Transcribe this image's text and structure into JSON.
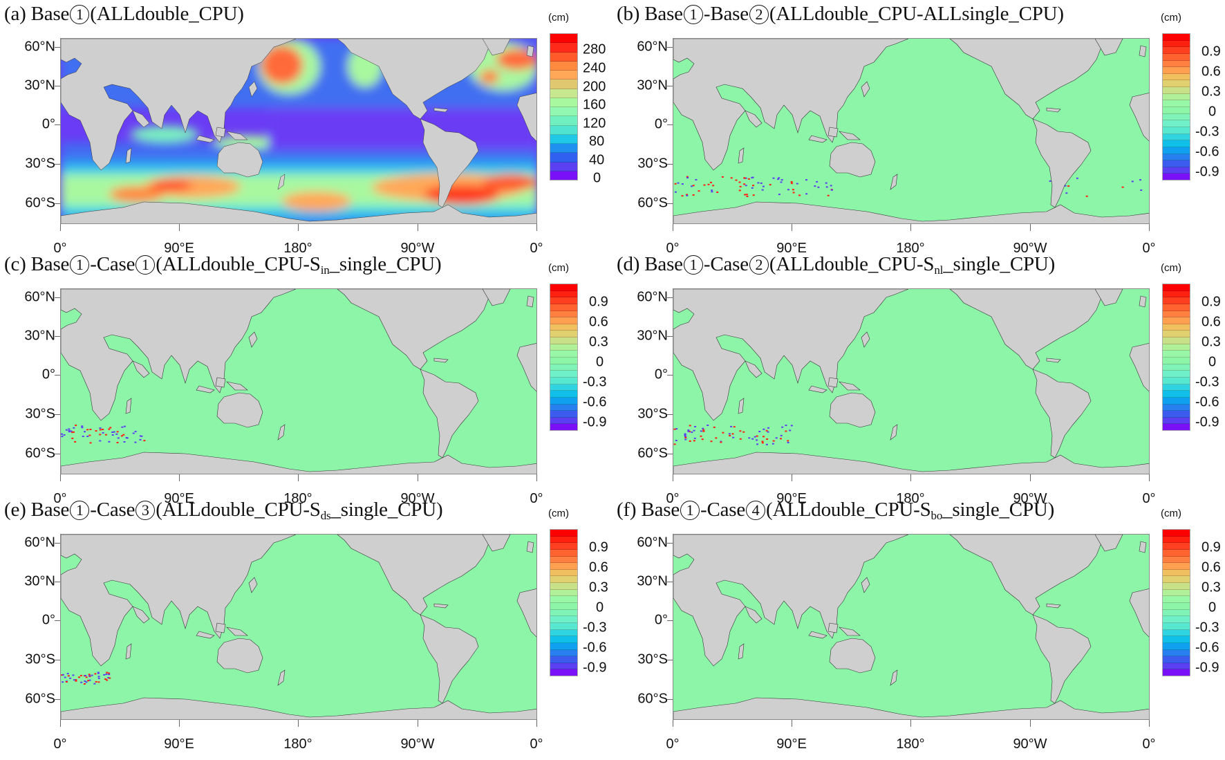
{
  "figure": {
    "units_label": "(cm)",
    "lat_labels": [
      "60°N",
      "30°N",
      "0°",
      "30°S",
      "60°S"
    ],
    "lon_labels": [
      "0°",
      "90°E",
      "180°",
      "90°W",
      "0°"
    ],
    "colors": {
      "ocean_zero": "#8cf5a8",
      "land": "#cfcfcf",
      "base_background": "#6a3cf5"
    }
  },
  "panels": [
    {
      "id": "a",
      "tag": "(a)",
      "pre": "Base",
      "c1": "1",
      "mid": "",
      "c2": "",
      "paren": "(ALLdouble_CPU)",
      "sub": "",
      "post": ""
    },
    {
      "id": "b",
      "tag": "(b)",
      "pre": "Base",
      "c1": "1",
      "mid": "-Base",
      "c2": "2",
      "paren": "(ALLdouble_CPU-ALLsingle_CPU)",
      "sub": "",
      "post": ""
    },
    {
      "id": "c",
      "tag": "(c)",
      "pre": "Base",
      "c1": "1",
      "mid": "-Case",
      "c2": "1",
      "paren": "(ALLdouble_CPU-S",
      "sub": "in",
      "post": "_single_CPU)"
    },
    {
      "id": "d",
      "tag": "(d)",
      "pre": "Base",
      "c1": "1",
      "mid": "-Case",
      "c2": "2",
      "paren": "(ALLdouble_CPU-S",
      "sub": "nl",
      "post": "_single_CPU)"
    },
    {
      "id": "e",
      "tag": "(e)",
      "pre": "Base",
      "c1": "1",
      "mid": "-Case",
      "c2": "3",
      "paren": "(ALLdouble_CPU-S",
      "sub": "ds",
      "post": "_single_CPU)"
    },
    {
      "id": "f",
      "tag": "(f)",
      "pre": "Base",
      "c1": "1",
      "mid": "-Case",
      "c2": "4",
      "paren": "(ALLdouble_CPU-S",
      "sub": "bo",
      "post": "_single_CPU)"
    }
  ],
  "colorbars": {
    "absolute": {
      "labels": [
        "280",
        "240",
        "200",
        "160",
        "120",
        "80",
        "40",
        "0"
      ],
      "colors": [
        "#ff0000",
        "#ff2a1a",
        "#ff5a2a",
        "#ff8a40",
        "#ffa858",
        "#e0c870",
        "#c8e890",
        "#a8f8a0",
        "#90f8b0",
        "#70f0c0",
        "#50e4d0",
        "#20c8e8",
        "#2090f0",
        "#3060f0",
        "#5a40f0",
        "#7a10f8"
      ]
    },
    "difference": {
      "labels": [
        "0.9",
        "0.6",
        "0.3",
        "0",
        "-0.3",
        "-0.6",
        "-0.9"
      ],
      "colors": [
        "#ff0000",
        "#ff2010",
        "#ff4020",
        "#ff6430",
        "#ff8040",
        "#ffa050",
        "#f0c060",
        "#e0d070",
        "#c8e088",
        "#b0f098",
        "#98f8a8",
        "#8cf5a8",
        "#80f4b8",
        "#70f0c8",
        "#58e8d0",
        "#30d4e0",
        "#10c0e8",
        "#10a0f0",
        "#2880f0",
        "#3c5cf0",
        "#5a40f0",
        "#7a10f8"
      ]
    }
  },
  "chart_data": [
    {
      "type": "heatmap",
      "title": "(a) Base①(ALLdouble_CPU)",
      "xlabel": "",
      "ylabel": "",
      "x_ticks": [
        "0°",
        "90°E",
        "180°",
        "90°W",
        "0°"
      ],
      "y_ticks": [
        "60°N",
        "30°N",
        "0°",
        "30°S",
        "60°S"
      ],
      "colorbar": {
        "unit": "cm",
        "ticks": [
          0,
          40,
          80,
          120,
          160,
          200,
          240,
          280
        ],
        "range": [
          0,
          300
        ]
      },
      "description": "Global field (cm); maxima ~280-300 cm in Southern Ocean (~50-60°S, south of Indian Ocean and near Drake Passage/South Atlantic), North Pacific (~40-50°N, 150-170°E) and North Atlantic (~45-55°N); low values (0-40 cm) across tropical oceans."
    },
    {
      "type": "heatmap",
      "title": "(b) Base①-Base②(ALLdouble_CPU-ALLsingle_CPU)",
      "x_ticks": [
        "0°",
        "90°E",
        "180°",
        "90°W",
        "0°"
      ],
      "y_ticks": [
        "60°N",
        "30°N",
        "0°",
        "30°S",
        "60°S"
      ],
      "colorbar": {
        "unit": "cm",
        "ticks": [
          -0.9,
          -0.6,
          -0.3,
          0,
          0.3,
          0.6,
          0.9
        ],
        "range": [
          -1.05,
          1.05
        ]
      },
      "description": "Difference ~0 nearly everywhere; scattered ±1 cm speckles in Southern Ocean 40-60°S between 0° and 120°E and a few points near Drake Passage."
    },
    {
      "type": "heatmap",
      "title": "(c) Base①-Case①(ALLdouble_CPU-S_in_single_CPU)",
      "x_ticks": [
        "0°",
        "90°E",
        "180°",
        "90°W",
        "0°"
      ],
      "y_ticks": [
        "60°N",
        "30°N",
        "0°",
        "30°S",
        "60°S"
      ],
      "colorbar": {
        "unit": "cm",
        "ticks": [
          -0.9,
          -0.6,
          -0.3,
          0,
          0.3,
          0.6,
          0.9
        ],
        "range": [
          -1.05,
          1.05
        ]
      },
      "description": "Difference ~0; small ±1 cm speckles at 40-55°S, 0-50°E."
    },
    {
      "type": "heatmap",
      "title": "(d) Base①-Case②(ALLdouble_CPU-S_nl_single_CPU)",
      "x_ticks": [
        "0°",
        "90°E",
        "180°",
        "90°W",
        "0°"
      ],
      "y_ticks": [
        "60°N",
        "30°N",
        "0°",
        "30°S",
        "60°S"
      ],
      "colorbar": {
        "unit": "cm",
        "ticks": [
          -0.9,
          -0.6,
          -0.3,
          0,
          0.3,
          0.6,
          0.9
        ],
        "range": [
          -1.05,
          1.05
        ]
      },
      "description": "Difference ~0; ±1 cm speckles at 40-55°S, 0-70°E."
    },
    {
      "type": "heatmap",
      "title": "(e) Base①-Case③(ALLdouble_CPU-S_ds_single_CPU)",
      "x_ticks": [
        "0°",
        "90°E",
        "180°",
        "90°W",
        "0°"
      ],
      "y_ticks": [
        "60°N",
        "30°N",
        "0°",
        "30°S",
        "60°S"
      ],
      "colorbar": {
        "unit": "cm",
        "ticks": [
          -0.9,
          -0.6,
          -0.3,
          0,
          0.3,
          0.6,
          0.9
        ],
        "range": [
          -1.05,
          1.05
        ]
      },
      "description": "Difference ~0; ±1 cm speckles at 40-50°S, 0-30°E."
    },
    {
      "type": "heatmap",
      "title": "(f) Base①-Case④(ALLdouble_CPU-S_bo_single_CPU)",
      "x_ticks": [
        "0°",
        "90°E",
        "180°",
        "90°W",
        "0°"
      ],
      "y_ticks": [
        "60°N",
        "30°N",
        "0°",
        "30°S",
        "60°S"
      ],
      "colorbar": {
        "unit": "cm",
        "ticks": [
          -0.9,
          -0.6,
          -0.3,
          0,
          0.3,
          0.6,
          0.9
        ],
        "range": [
          -1.05,
          1.05
        ]
      },
      "description": "Difference ~0 everywhere."
    }
  ]
}
